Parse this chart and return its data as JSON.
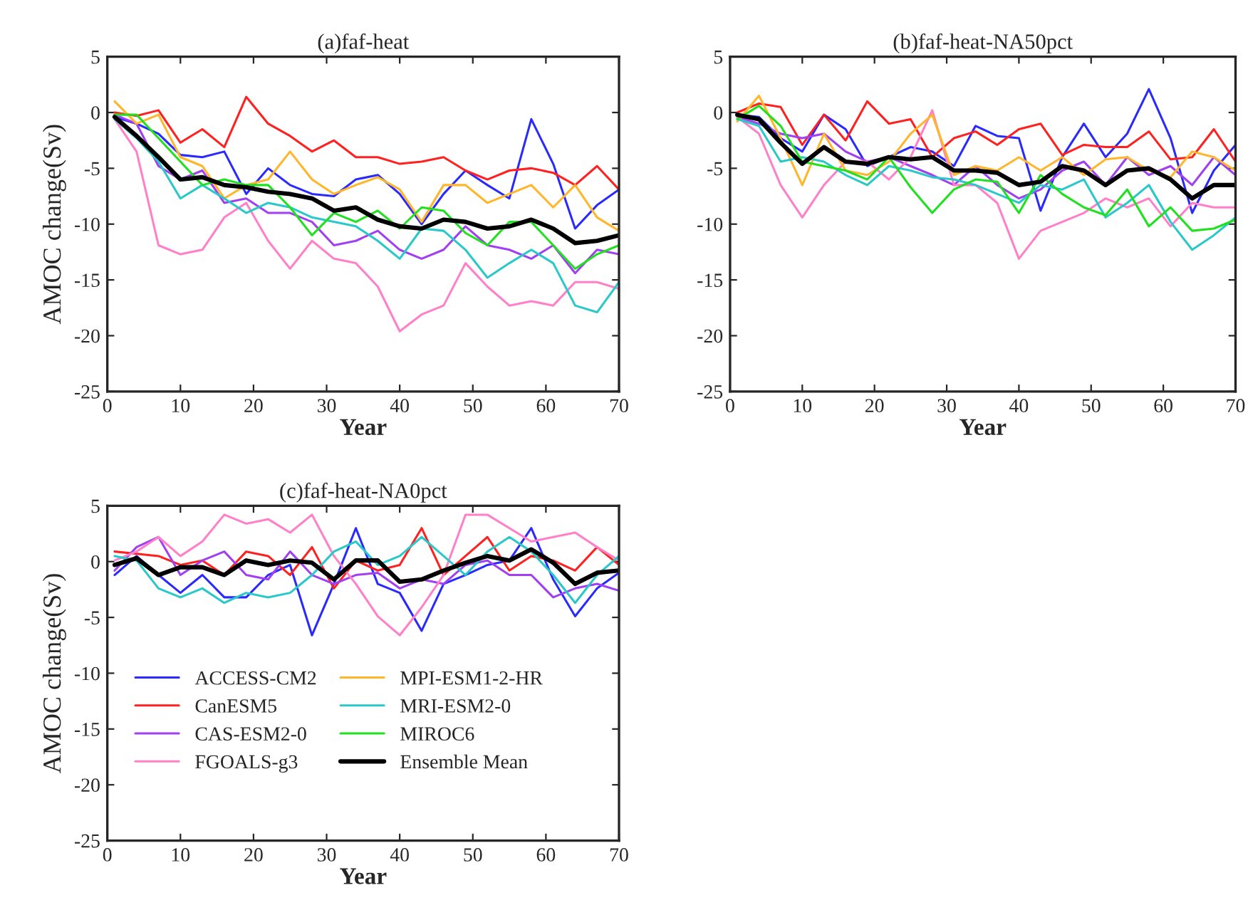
{
  "chart_data": [
    {
      "type": "line",
      "title": "(a)faf-heat",
      "xlabel": "Year",
      "ylabel": "AMOC change(Sv)",
      "xlim": [
        0,
        70
      ],
      "ylim": [
        -25,
        5
      ],
      "xticks": [
        0,
        10,
        20,
        30,
        40,
        50,
        60,
        70
      ],
      "yticks": [
        -25,
        -20,
        -15,
        -10,
        -5,
        0,
        5
      ],
      "grid": false,
      "legend": false,
      "line_style": "solid",
      "x": [
        1,
        4,
        7,
        10,
        13,
        16,
        19,
        22,
        25,
        28,
        31,
        34,
        37,
        40,
        43,
        46,
        49,
        52,
        55,
        58,
        61,
        64,
        67,
        70
      ],
      "series": [
        {
          "color": "#2a2aff",
          "values": [
            -0.4,
            -1,
            -1.9,
            -3.8,
            -4,
            -3.5,
            -7.3,
            -5,
            -6.5,
            -7.3,
            -7.5,
            -6,
            -5.6,
            -7.3,
            -10,
            -7.3,
            -5.2,
            -6.5,
            -7.7,
            -0.6,
            -4.6,
            -10.4,
            -8.3,
            -6.9
          ]
        },
        {
          "color": "#ff2020",
          "values": [
            0,
            -0.3,
            0.2,
            -2.7,
            -1.5,
            -3.1,
            1.4,
            -1,
            -2.1,
            -3.5,
            -2.5,
            -4,
            -4,
            -4.6,
            -4.4,
            -4,
            -5.2,
            -6,
            -5.2,
            -5,
            -5.4,
            -6.5,
            -4.8,
            -6.9
          ]
        },
        {
          "color": "#a040f0",
          "values": [
            -0.2,
            -1,
            -4.8,
            -6,
            -5.2,
            -8.1,
            -7.7,
            -9,
            -9,
            -9.8,
            -11.9,
            -11.5,
            -10.6,
            -12.3,
            -13.1,
            -12.3,
            -10.2,
            -11.9,
            -12.3,
            -13.1,
            -11.9,
            -14.4,
            -12.3,
            -12.7
          ]
        },
        {
          "color": "#ff80c8",
          "values": [
            -0.6,
            -3.5,
            -11.9,
            -12.7,
            -12.3,
            -9.4,
            -8.1,
            -11.5,
            -14,
            -11.5,
            -13.1,
            -13.5,
            -15.6,
            -19.6,
            -18.1,
            -17.3,
            -13.5,
            -15.6,
            -17.3,
            -16.9,
            -17.3,
            -15.2,
            -15.2,
            -15.8
          ]
        },
        {
          "color": "#ffb62a",
          "values": [
            1,
            -1,
            -0.2,
            -4,
            -4.8,
            -7.7,
            -6.5,
            -6,
            -3.5,
            -6,
            -7.3,
            -6.5,
            -5.8,
            -6.9,
            -9.8,
            -6.5,
            -6.5,
            -8.1,
            -7.3,
            -6.5,
            -8.5,
            -6.5,
            -9.4,
            -10.6
          ]
        },
        {
          "color": "#2ac8c8",
          "values": [
            -0.6,
            -2.3,
            -4.4,
            -7.7,
            -6.5,
            -7.7,
            -9,
            -8.1,
            -8.5,
            -9.4,
            -9.8,
            -10.2,
            -11.5,
            -13.1,
            -10.4,
            -10.6,
            -12.3,
            -14.8,
            -13.5,
            -12.3,
            -13.5,
            -17.3,
            -17.9,
            -15.2
          ]
        },
        {
          "color": "#20e020",
          "values": [
            -0.2,
            -0.2,
            -2.3,
            -4.4,
            -6.5,
            -6,
            -6.5,
            -6.5,
            -8.5,
            -11,
            -9,
            -9.8,
            -8.8,
            -10.4,
            -8.5,
            -8.8,
            -10.8,
            -11.9,
            -9.8,
            -9.8,
            -11.9,
            -14,
            -12.7,
            -11.9
          ]
        },
        {
          "color": "#000000",
          "values": [
            -0.4,
            -2.1,
            -4,
            -6,
            -5.8,
            -6.5,
            -6.7,
            -7.1,
            -7.3,
            -7.7,
            -8.8,
            -8.5,
            -9.6,
            -10.2,
            -10.4,
            -9.6,
            -9.8,
            -10.4,
            -10.2,
            -9.6,
            -10.4,
            -11.7,
            -11.5,
            -11
          ]
        }
      ]
    },
    {
      "type": "line",
      "title": "(b)faf-heat-NA50pct",
      "xlabel": "Year",
      "xlim": [
        0,
        70
      ],
      "ylim": [
        -25,
        5
      ],
      "xticks": [
        0,
        10,
        20,
        30,
        40,
        50,
        60,
        70
      ],
      "yticks": [
        -25,
        -20,
        -15,
        -10,
        -5,
        0,
        5
      ],
      "grid": false,
      "legend": false,
      "line_style": "solid",
      "x": [
        1,
        4,
        7,
        10,
        13,
        16,
        19,
        22,
        25,
        28,
        31,
        34,
        37,
        40,
        43,
        46,
        49,
        52,
        55,
        58,
        61,
        64,
        67,
        70
      ],
      "series": [
        {
          "color": "#2a2aff",
          "values": [
            -0.2,
            -0.4,
            -2.3,
            -3.5,
            -0.2,
            -1.5,
            -4.8,
            -4,
            -3.1,
            -3.5,
            -4.8,
            -1.2,
            -2.1,
            -2.3,
            -8.8,
            -4,
            -1,
            -4,
            -1.9,
            2.1,
            -2.3,
            -9,
            -5.2,
            -2.9
          ]
        },
        {
          "color": "#ff2020",
          "values": [
            0,
            0.8,
            0.5,
            -2.9,
            -0.2,
            -2.5,
            1,
            -1,
            -0.6,
            -4,
            -2.3,
            -1.7,
            -2.9,
            -1.5,
            -1,
            -3.8,
            -2.9,
            -3.1,
            -3.1,
            -1.7,
            -4.2,
            -4,
            -1.5,
            -4.4
          ]
        },
        {
          "color": "#a040f0",
          "values": [
            -0.4,
            -1,
            -1.9,
            -2.3,
            -1.9,
            -3.5,
            -4.4,
            -4,
            -4.8,
            -5.6,
            -6.5,
            -4.8,
            -6.5,
            -7.7,
            -6.9,
            -5.2,
            -4.4,
            -6.5,
            -4,
            -5.6,
            -4.8,
            -6.5,
            -4,
            -5.6
          ]
        },
        {
          "color": "#ff80c8",
          "values": [
            -0.4,
            -1.9,
            -6.5,
            -9.4,
            -6.5,
            -4.4,
            -4.4,
            -6,
            -4,
            0.2,
            -6.5,
            -6.5,
            -8.1,
            -13.1,
            -10.6,
            -9.8,
            -9,
            -7.7,
            -8.5,
            -7.7,
            -10.2,
            -8.1,
            -8.5,
            -8.5
          ]
        },
        {
          "color": "#ffb62a",
          "values": [
            -0.8,
            1.5,
            -2.3,
            -6.5,
            -1.9,
            -5.2,
            -5.6,
            -4.4,
            -1.9,
            -0.2,
            -5.6,
            -4.8,
            -5.2,
            -4,
            -5.2,
            -4,
            -5.6,
            -4.2,
            -4,
            -5.2,
            -5.8,
            -3.5,
            -4,
            -5.2
          ]
        },
        {
          "color": "#2ac8c8",
          "values": [
            -0.6,
            -1.2,
            -4.4,
            -4,
            -4.4,
            -5.6,
            -6.5,
            -4.8,
            -5.2,
            -5.8,
            -6,
            -6.5,
            -7.3,
            -8.1,
            -6.5,
            -6.9,
            -6,
            -9.4,
            -8.1,
            -6.5,
            -9.8,
            -12.3,
            -11,
            -9.4
          ]
        },
        {
          "color": "#20e020",
          "values": [
            -0.6,
            0.6,
            -1.2,
            -4.4,
            -4.8,
            -5.2,
            -6,
            -4,
            -6.7,
            -9,
            -6.9,
            -6,
            -6.2,
            -9,
            -5.6,
            -7.3,
            -8.5,
            -9.2,
            -6.9,
            -10.2,
            -8.5,
            -10.6,
            -10.4,
            -9.6
          ]
        },
        {
          "color": "#000000",
          "values": [
            -0.2,
            -0.6,
            -2.7,
            -4.6,
            -3.1,
            -4.4,
            -4.6,
            -4,
            -4.2,
            -4,
            -5.2,
            -5.2,
            -5.4,
            -6.5,
            -6.2,
            -4.8,
            -5.2,
            -6.5,
            -5.2,
            -5,
            -6,
            -7.7,
            -6.5,
            -6.5
          ]
        }
      ]
    },
    {
      "type": "line",
      "title": "(c)faf-heat-NA0pct",
      "xlabel": "Year",
      "ylabel": "AMOC change(Sv)",
      "xlim": [
        0,
        70
      ],
      "ylim": [
        -25,
        5
      ],
      "xticks": [
        0,
        10,
        20,
        30,
        40,
        50,
        60,
        70
      ],
      "yticks": [
        -25,
        -20,
        -15,
        -10,
        -5,
        0,
        5
      ],
      "grid": false,
      "legend": "bottom left",
      "line_style": "solid",
      "x": [
        1,
        4,
        7,
        10,
        13,
        16,
        19,
        22,
        25,
        28,
        31,
        34,
        37,
        40,
        43,
        46,
        49,
        52,
        55,
        58,
        61,
        64,
        67,
        70
      ],
      "series": [
        {
          "name": "ACCESS-CM2",
          "color": "#2a2aff",
          "values": [
            -1.2,
            0.5,
            -1.2,
            -2.8,
            -1.2,
            -3.2,
            -3.2,
            -1.2,
            -0.3,
            -6.6,
            -2,
            3,
            -2,
            -2.8,
            -6.2,
            -2,
            -1.2,
            -0.3,
            0.1,
            3,
            -1.6,
            -4.9,
            -2.4,
            -1
          ]
        },
        {
          "name": "CanESM5",
          "color": "#ff2020",
          "values": [
            0.9,
            0.7,
            0.5,
            -0.3,
            0.1,
            -1.2,
            0.9,
            0.5,
            -1.2,
            1.3,
            -2.4,
            0.1,
            -0.8,
            -0.3,
            3,
            -1.2,
            0.5,
            2.2,
            -0.8,
            0.5,
            0.1,
            -0.8,
            1.3,
            -0.3
          ]
        },
        {
          "name": "CAS-ESM2-0",
          "color": "#a040f0",
          "values": [
            -0.8,
            1.3,
            2.2,
            -1.2,
            0.1,
            0.9,
            -1.2,
            -1.6,
            0.9,
            -1.2,
            -2,
            -1.2,
            -1,
            -2.4,
            -1.6,
            -2,
            -0.3,
            0.1,
            -1.2,
            -1.2,
            -3.2,
            -2.4,
            -2,
            -2.6
          ]
        },
        {
          "name": "FGOALS-g3",
          "color": "#ff80c8",
          "values": [
            0.1,
            0.9,
            2.2,
            0.5,
            1.8,
            4.2,
            3.4,
            3.8,
            2.6,
            4.2,
            0.5,
            -2,
            -4.9,
            -6.6,
            -4.1,
            -1.2,
            4.2,
            4.2,
            3,
            1.8,
            2.2,
            2.6,
            1.3,
            0.1
          ]
        },
        {
          "name": "MPI-ESM1-2-HR",
          "color": "#ffb62a",
          "values": [
            null,
            null,
            null,
            null,
            null,
            null,
            null,
            null,
            null,
            null,
            null,
            null,
            null,
            null,
            null,
            null,
            null,
            null,
            null,
            null,
            null,
            null,
            null,
            null
          ]
        },
        {
          "name": "MRI-ESM2-0",
          "color": "#2ac8c8",
          "values": [
            0.5,
            0.1,
            -2.4,
            -3.2,
            -2.4,
            -3.7,
            -2.8,
            -3.2,
            -2.8,
            -1.2,
            0.9,
            1.8,
            -0.3,
            0.5,
            2.2,
            0.5,
            -1.2,
            0.9,
            2.2,
            0.9,
            -1.2,
            -3.7,
            -1.2,
            0.5
          ]
        },
        {
          "name": "MIROC6",
          "color": "#20e020",
          "values": [
            null,
            null,
            null,
            null,
            null,
            null,
            null,
            null,
            null,
            null,
            null,
            null,
            null,
            null,
            null,
            null,
            null,
            null,
            null,
            null,
            null,
            null,
            null,
            null
          ]
        },
        {
          "name": "Ensemble Mean",
          "color": "#000000",
          "values": [
            -0.3,
            0.3,
            -1.2,
            -0.5,
            -0.5,
            -1.2,
            0.1,
            -0.3,
            0.1,
            -0.1,
            -1.6,
            0.1,
            0.1,
            -1.8,
            -1.6,
            -0.8,
            -0.1,
            0.5,
            0.1,
            1.1,
            -0.1,
            -2,
            -1,
            -0.8
          ]
        }
      ]
    }
  ]
}
